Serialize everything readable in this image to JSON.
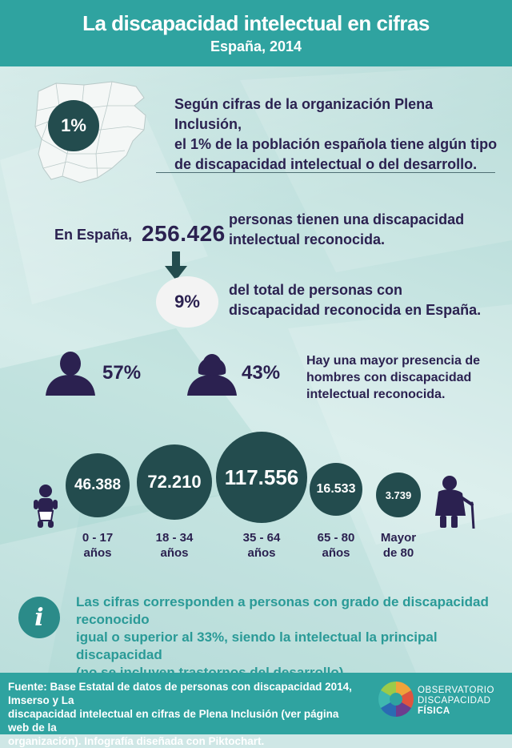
{
  "header": {
    "title": "La discapacidad intelectual en cifras",
    "subtitle": "España, 2014"
  },
  "intro": {
    "percent": "1%",
    "lines": [
      "Según cifras de la organización Plena Inclusión,",
      "el 1% de la población española tiene algún tipo",
      "de discapacidad intelectual o del desarrollo."
    ]
  },
  "total": {
    "prefix": "En España,",
    "number": "256.426",
    "lines": [
      "personas tienen una discapacidad",
      "intelectual reconocida."
    ]
  },
  "share": {
    "percent": "9%",
    "lines": [
      "del total de personas con",
      "discapacidad reconocida en España."
    ]
  },
  "gender": {
    "men_percent": "57%",
    "women_percent": "43%",
    "lines": [
      "Hay una mayor presencia de",
      "hombres con discapacidad",
      "intelectual reconocida."
    ]
  },
  "age_groups": [
    {
      "value": "46.388",
      "label_1": "0 - 17",
      "label_2": "años"
    },
    {
      "value": "72.210",
      "label_1": "18 - 34",
      "label_2": "años"
    },
    {
      "value": "117.556",
      "label_1": "35 - 64",
      "label_2": "años"
    },
    {
      "value": "16.533",
      "label_1": "65 - 80",
      "label_2": "años"
    },
    {
      "value": "3.739",
      "label_1": "Mayor",
      "label_2": "de 80"
    }
  ],
  "note": {
    "icon": "info-icon",
    "lines": [
      "Las cifras corresponden a personas con grado de discapacidad reconocido",
      "igual o superior al 33%, siendo la intelectual la principal discapacidad",
      "(no se incluyen trastornos del desarrollo)."
    ]
  },
  "footer": {
    "lines": [
      "Fuente: Base Estatal de datos de personas con discapacidad 2014, Imserso y La",
      "discapacidad intelectual en cifras de Plena Inclusión (ver página web de la",
      "organización). Infografía diseñada con Piktochart."
    ],
    "logo_lines": [
      "OBSERVATORIO",
      "DISCAPACIDAD",
      "FÍSICA"
    ]
  },
  "colors": {
    "header": "#2fa3a0",
    "dark_circle": "#234c4e",
    "text": "#2b2150",
    "note_text": "#2a9a97",
    "background": "#cfe7e6"
  }
}
